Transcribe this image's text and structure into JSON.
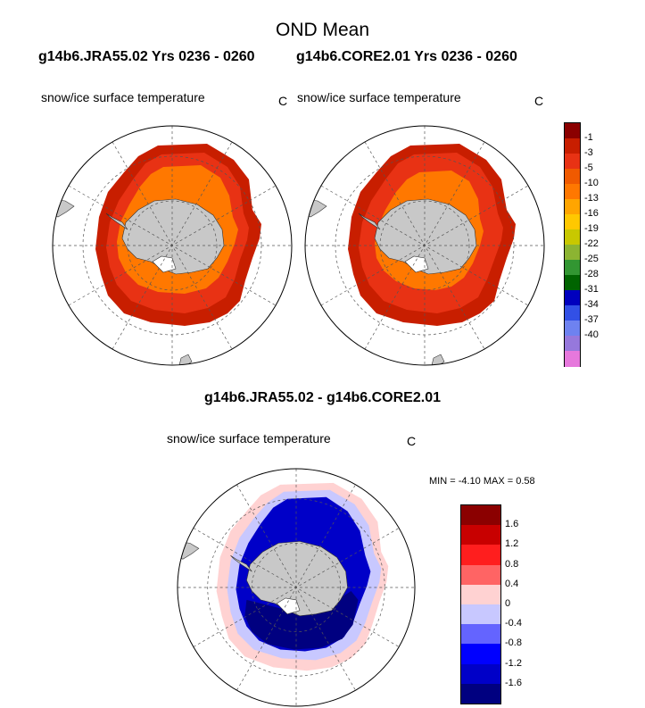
{
  "title": "OND Mean",
  "run_titles": [
    "g14b6.JRA55.02  Yrs 0236 - 0260",
    "g14b6.CORE2.01  Yrs 0236 - 0260"
  ],
  "diff_title": "g14b6.JRA55.02 - g14b6.CORE2.01",
  "panels": [
    {
      "variable": "snow/ice surface temperature",
      "units": "C"
    },
    {
      "variable": "snow/ice surface temperature",
      "units": "C"
    },
    {
      "variable": "snow/ice surface temperature",
      "units": "C"
    }
  ],
  "diff_stats": {
    "min_label": "MIN =",
    "min": "-4.10",
    "max_label": "MAX =",
    "max": "0.58"
  },
  "colorbar_top": {
    "labels": [
      "-1",
      "-3",
      "-5",
      "-10",
      "-13",
      "-16",
      "-19",
      "-22",
      "-25",
      "-28",
      "-31",
      "-34",
      "-37",
      "-40"
    ],
    "colors": [
      "#8b0000",
      "#c81e00",
      "#e83214",
      "#f05a00",
      "#ff7800",
      "#ffa500",
      "#ffc800",
      "#c8c800",
      "#8cb432",
      "#329632",
      "#006400",
      "#0000be",
      "#3250e6",
      "#6e82f0",
      "#9678dc",
      "#e678dc"
    ]
  },
  "colorbar_diff": {
    "labels": [
      "1.6",
      "1.2",
      "0.8",
      "0.4",
      "0",
      "-0.4",
      "-0.8",
      "-1.2",
      "-1.6"
    ],
    "colors": [
      "#8b0000",
      "#c80000",
      "#ff1e1e",
      "#ff6464",
      "#ffd2d2",
      "#c8c8ff",
      "#6464ff",
      "#0000ff",
      "#0000c8",
      "#000080"
    ]
  },
  "colors": {
    "land": "#c8c8c8",
    "ocean": "#ffffff",
    "grid": "#555555",
    "ice_mid_a": "#ff7800",
    "ice_mid_b": "#e83214",
    "ice_edge": "#c81e00",
    "diff_cold": "#000080",
    "diff_blue": "#0000c8",
    "diff_light": "#c8c8ff",
    "diff_pink": "#ffd2d2"
  }
}
